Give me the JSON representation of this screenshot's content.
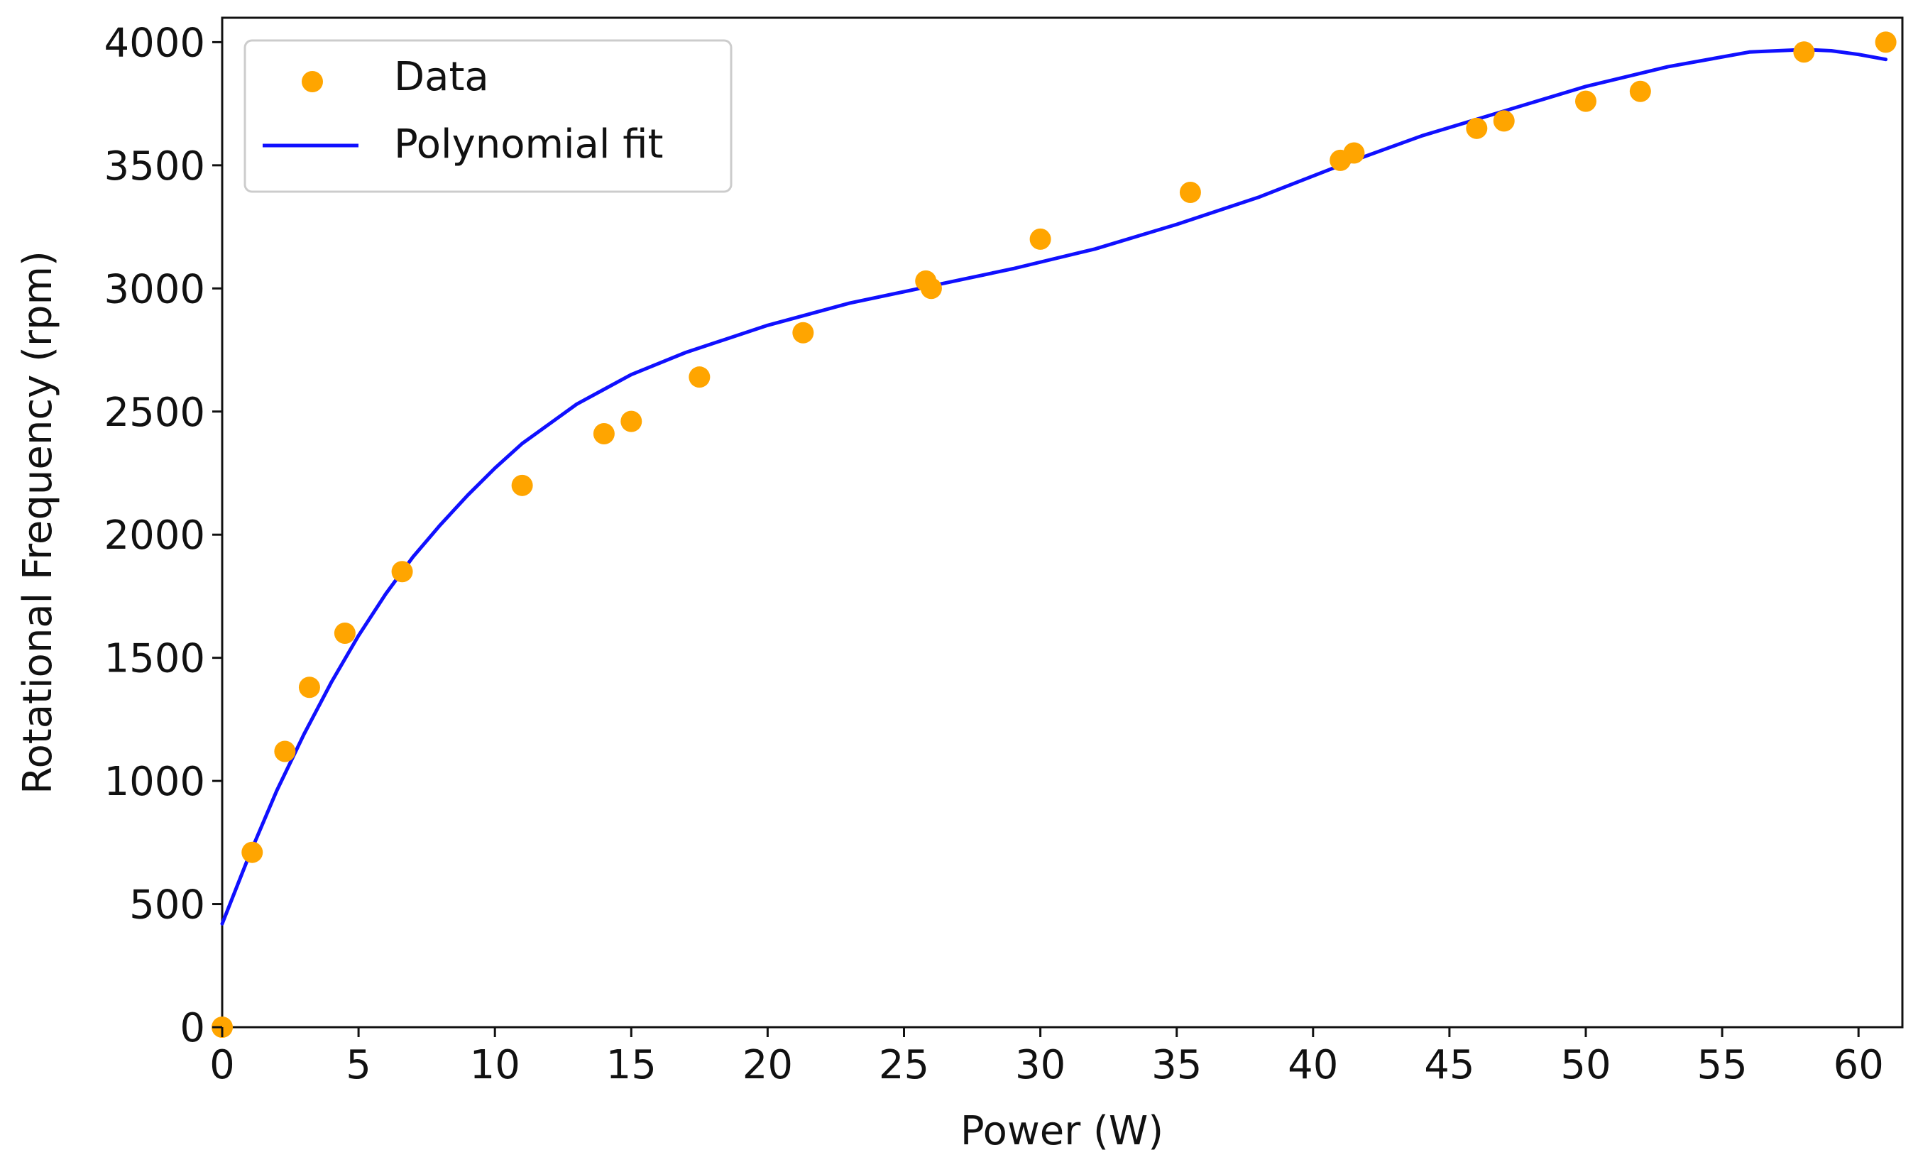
{
  "chart_data": {
    "type": "scatter",
    "xlabel": "Power (W)",
    "ylabel": "Rotational Frequency (rpm)",
    "xlim": [
      0,
      62
    ],
    "ylim": [
      0,
      4100
    ],
    "x_ticks": [
      0,
      5,
      10,
      15,
      20,
      25,
      30,
      35,
      40,
      45,
      50,
      55,
      60
    ],
    "y_ticks": [
      0,
      500,
      1000,
      1500,
      2000,
      2500,
      3000,
      3500,
      4000
    ],
    "legend_position": "top-left",
    "series": [
      {
        "name": "Data",
        "kind": "scatter",
        "color": "#FFA500",
        "points": [
          [
            0,
            0
          ],
          [
            1.1,
            710
          ],
          [
            2.3,
            1120
          ],
          [
            3.2,
            1380
          ],
          [
            4.5,
            1600
          ],
          [
            6.6,
            1850
          ],
          [
            11.0,
            2200
          ],
          [
            14.0,
            2410
          ],
          [
            15.0,
            2460
          ],
          [
            17.5,
            2640
          ],
          [
            21.3,
            2820
          ],
          [
            25.8,
            3030
          ],
          [
            26.0,
            3000
          ],
          [
            30.0,
            3200
          ],
          [
            35.5,
            3390
          ],
          [
            41.0,
            3520
          ],
          [
            41.5,
            3550
          ],
          [
            46.0,
            3650
          ],
          [
            47.0,
            3680
          ],
          [
            50.0,
            3760
          ],
          [
            52.0,
            3800
          ],
          [
            58.0,
            3960
          ],
          [
            61.0,
            4000
          ]
        ]
      },
      {
        "name": "Polynomial fit",
        "kind": "line",
        "color": "#1010FF",
        "points": [
          [
            0,
            420
          ],
          [
            1,
            700
          ],
          [
            2,
            960
          ],
          [
            3,
            1190
          ],
          [
            4,
            1400
          ],
          [
            5,
            1590
          ],
          [
            6,
            1760
          ],
          [
            7,
            1910
          ],
          [
            8,
            2040
          ],
          [
            9,
            2160
          ],
          [
            10,
            2270
          ],
          [
            11,
            2370
          ],
          [
            12,
            2450
          ],
          [
            13,
            2530
          ],
          [
            14,
            2590
          ],
          [
            15,
            2650
          ],
          [
            17,
            2740
          ],
          [
            20,
            2850
          ],
          [
            23,
            2940
          ],
          [
            26,
            3010
          ],
          [
            29,
            3080
          ],
          [
            32,
            3160
          ],
          [
            35,
            3260
          ],
          [
            38,
            3370
          ],
          [
            41,
            3500
          ],
          [
            44,
            3620
          ],
          [
            47,
            3720
          ],
          [
            50,
            3820
          ],
          [
            53,
            3900
          ],
          [
            56,
            3960
          ],
          [
            58,
            3970
          ],
          [
            59,
            3965
          ],
          [
            60,
            3950
          ],
          [
            61,
            3930
          ]
        ]
      }
    ]
  }
}
